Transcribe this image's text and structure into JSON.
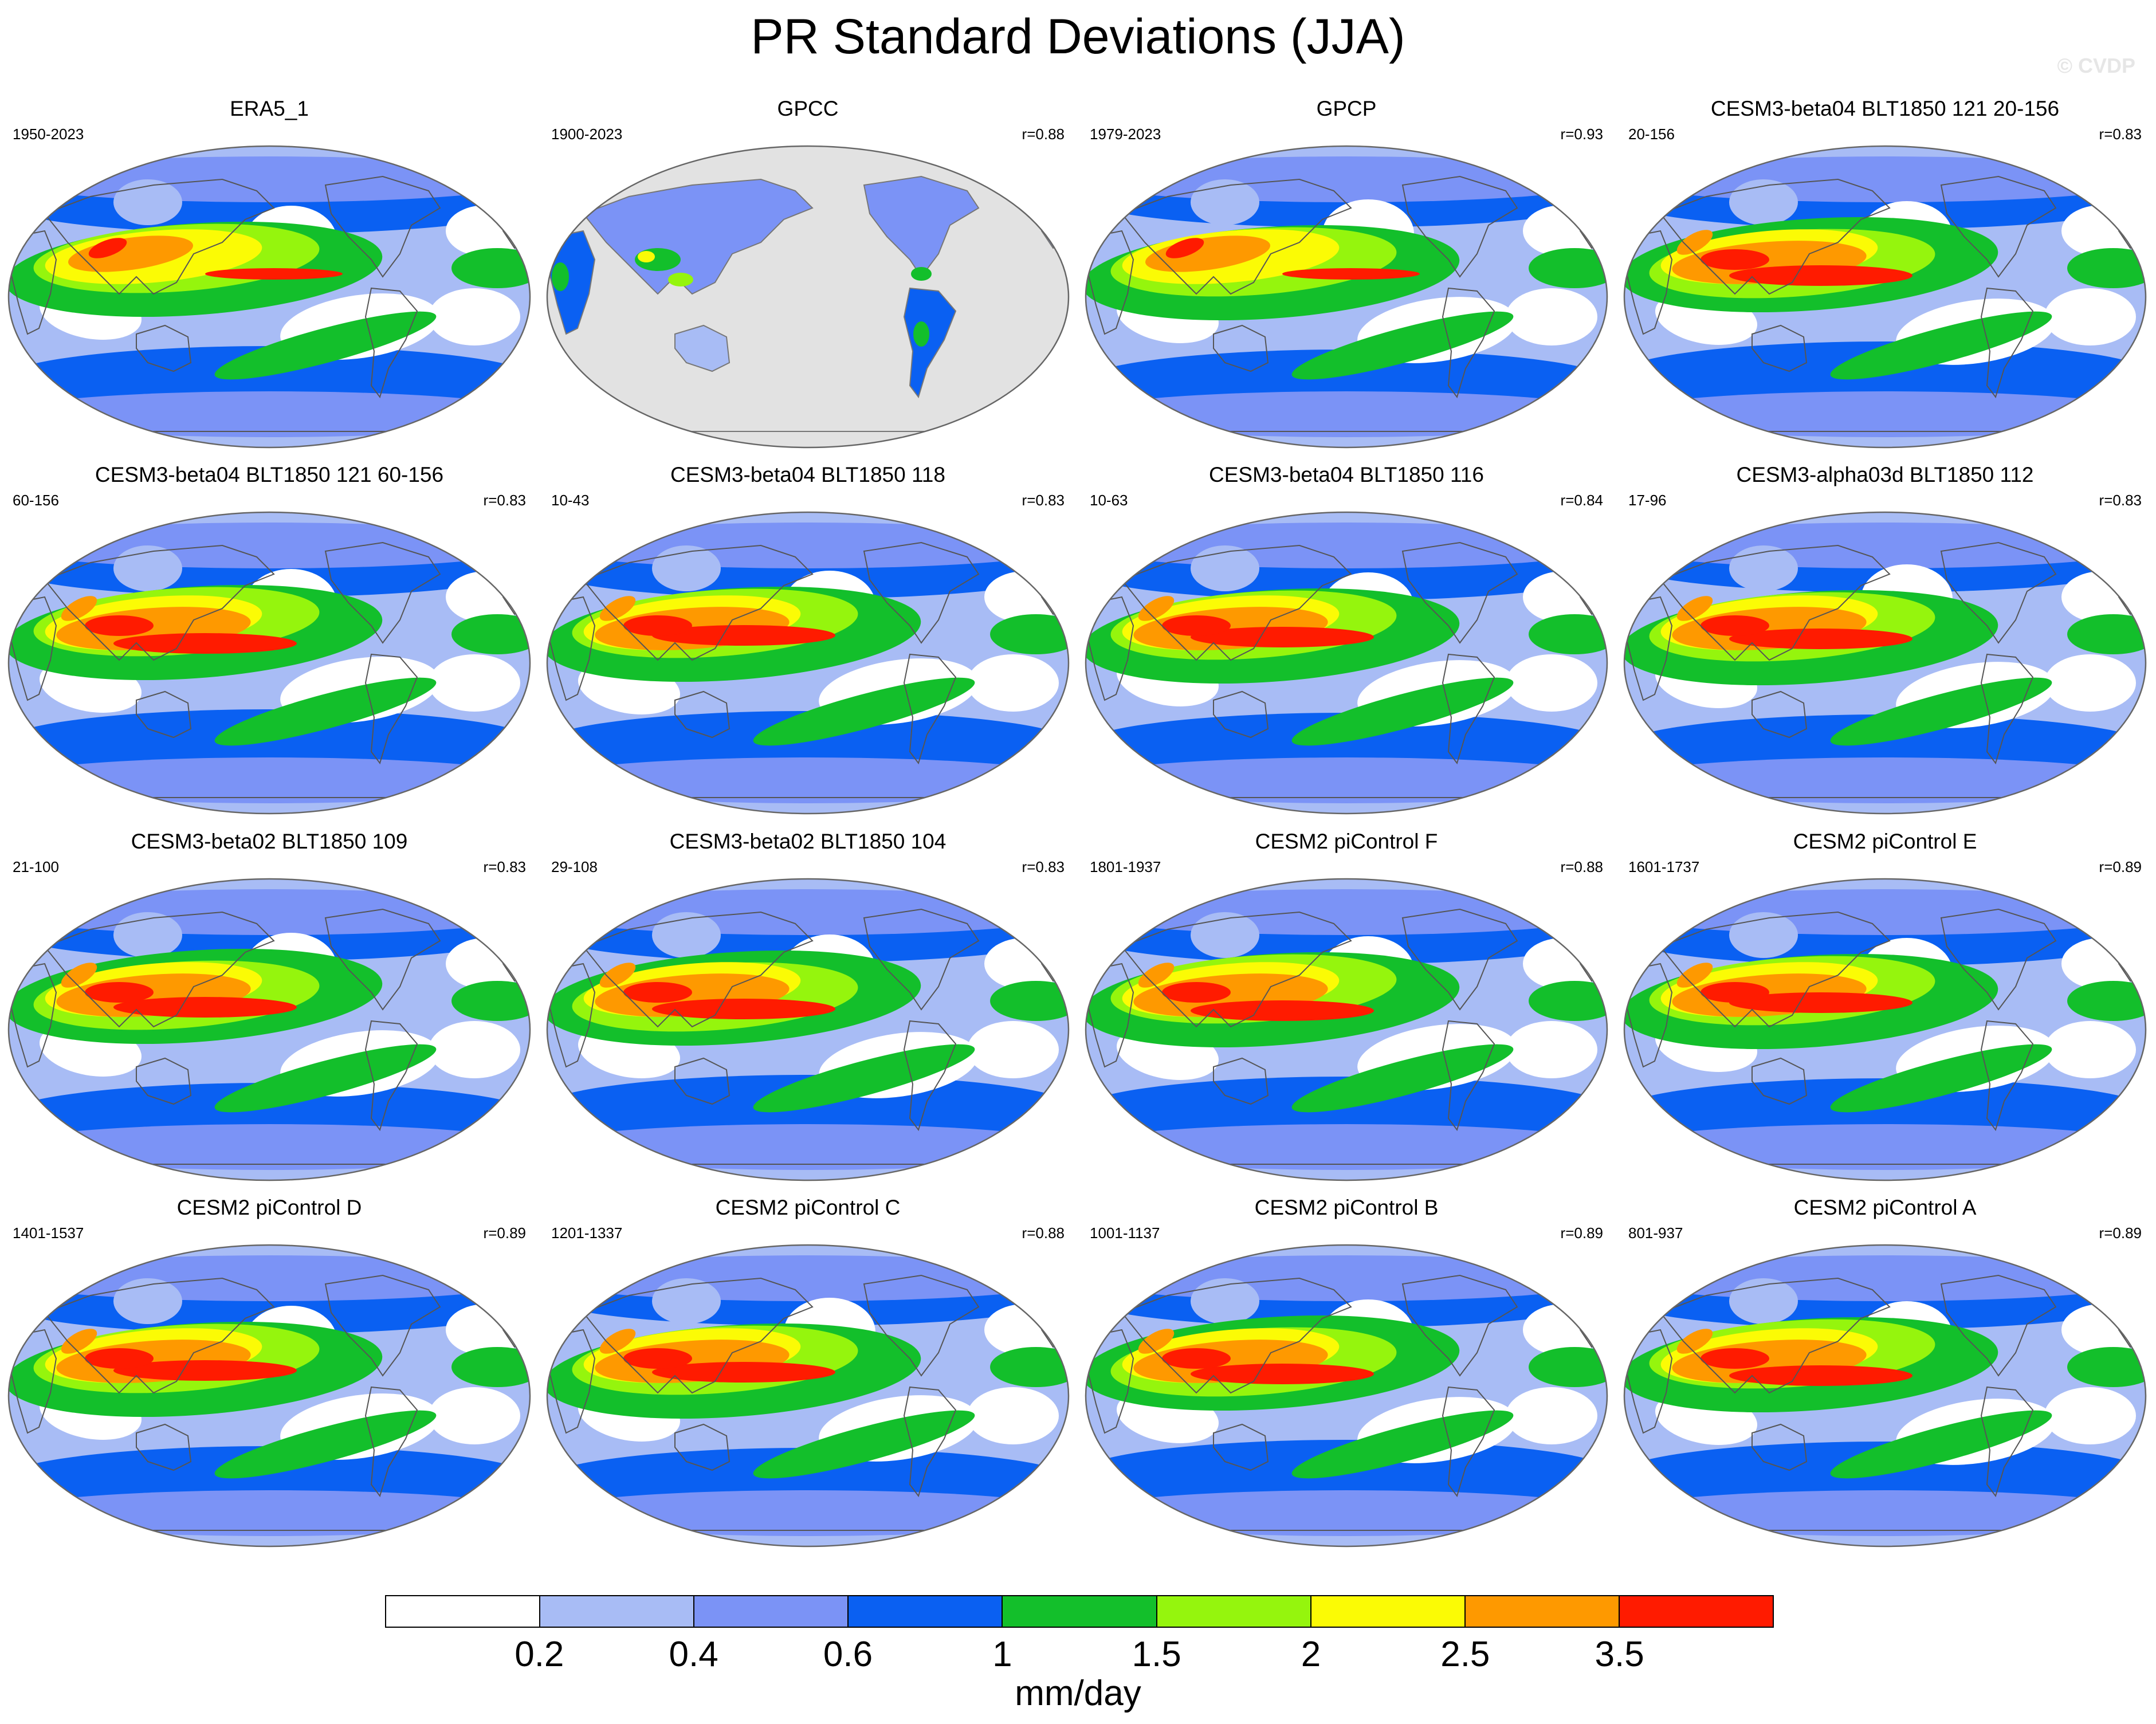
{
  "title": "PR Standard Deviations (JJA)",
  "watermark": "© CVDP",
  "units": "mm/day",
  "colors": {
    "ocean_missing": "#e2e2e2",
    "coast": "#777777"
  },
  "colorbar": {
    "colors": [
      "#ffffff",
      "#a8bcf5",
      "#7b93f6",
      "#0a60f2",
      "#13bf2b",
      "#95f50d",
      "#fbfb05",
      "#fe9900",
      "#ff1b00"
    ],
    "labels": [
      "0.2",
      "0.4",
      "0.6",
      "1",
      "1.5",
      "2",
      "2.5",
      "3.5"
    ]
  },
  "panels": [
    {
      "title": "ERA5_1",
      "years": "1950-2023",
      "r": "",
      "kind": "obs"
    },
    {
      "title": "GPCC",
      "years": "1900-2023",
      "r": "r=0.88",
      "kind": "land"
    },
    {
      "title": "GPCP",
      "years": "1979-2023",
      "r": "r=0.93",
      "kind": "obs"
    },
    {
      "title": "CESM3-beta04 BLT1850 121 20-156",
      "years": "20-156",
      "r": "r=0.83",
      "kind": "model"
    },
    {
      "title": "CESM3-beta04 BLT1850 121 60-156",
      "years": "60-156",
      "r": "r=0.83",
      "kind": "model"
    },
    {
      "title": "CESM3-beta04 BLT1850 118",
      "years": "10-43",
      "r": "r=0.83",
      "kind": "model"
    },
    {
      "title": "CESM3-beta04 BLT1850 116",
      "years": "10-63",
      "r": "r=0.84",
      "kind": "model"
    },
    {
      "title": "CESM3-alpha03d BLT1850 112",
      "years": "17-96",
      "r": "r=0.83",
      "kind": "model"
    },
    {
      "title": "CESM3-beta02 BLT1850 109",
      "years": "21-100",
      "r": "r=0.83",
      "kind": "model"
    },
    {
      "title": "CESM3-beta02 BLT1850 104",
      "years": "29-108",
      "r": "r=0.83",
      "kind": "model"
    },
    {
      "title": "CESM2 piControl F",
      "years": "1801-1937",
      "r": "r=0.88",
      "kind": "model"
    },
    {
      "title": "CESM2 piControl E",
      "years": "1601-1737",
      "r": "r=0.89",
      "kind": "model"
    },
    {
      "title": "CESM2 piControl D",
      "years": "1401-1537",
      "r": "r=0.89",
      "kind": "model"
    },
    {
      "title": "CESM2 piControl C",
      "years": "1201-1337",
      "r": "r=0.88",
      "kind": "model"
    },
    {
      "title": "CESM2 piControl B",
      "years": "1001-1137",
      "r": "r=0.89",
      "kind": "model"
    },
    {
      "title": "CESM2 piControl A",
      "years": "801-937",
      "r": "r=0.89",
      "kind": "model"
    }
  ]
}
